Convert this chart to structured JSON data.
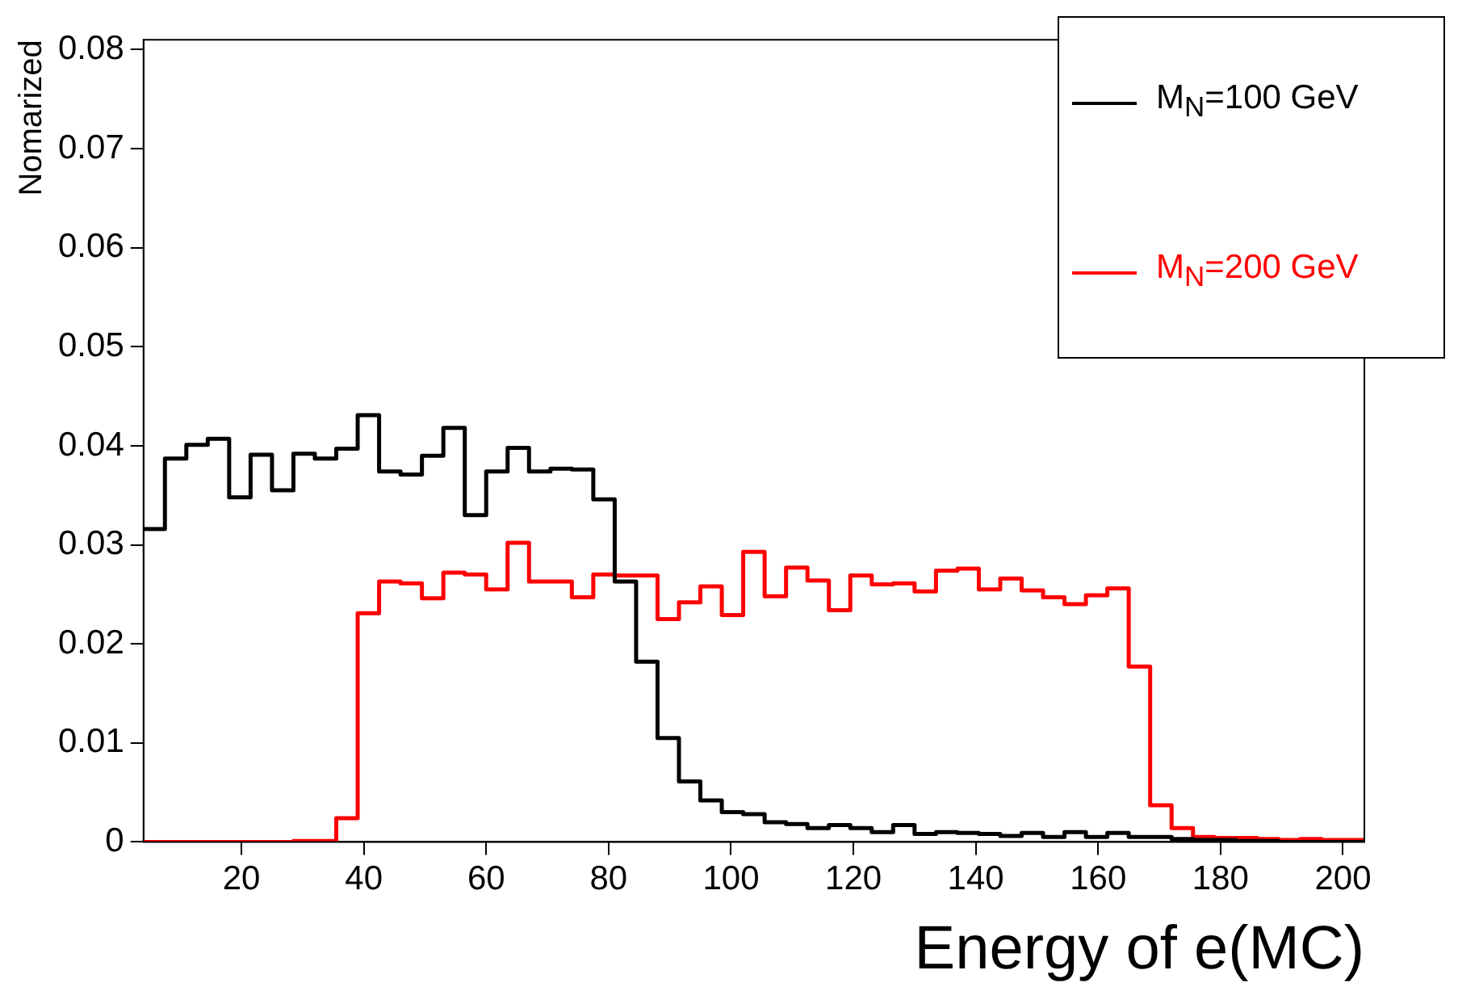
{
  "chart_data": {
    "type": "histogram",
    "xlabel": "Energy of e(MC)",
    "ylabel": "Nomarized",
    "bins": [
      4,
      7.5,
      11,
      14.5,
      18,
      21.5,
      25,
      28.5,
      32,
      35.5,
      39,
      42.5,
      46,
      49.5,
      53,
      56.5,
      60,
      63.5,
      67,
      70.5,
      74,
      77.5,
      81,
      84.5,
      88,
      91.5,
      95,
      98.5,
      102,
      105.5,
      109,
      112.5,
      116,
      119.5,
      123,
      126.5,
      130,
      133.5,
      137,
      140.5,
      144,
      147.5,
      151,
      154.5,
      158,
      161.5,
      165,
      168.5,
      172,
      175.5,
      179,
      182.5,
      186,
      189.5,
      193,
      196.5,
      200,
      203.5
    ],
    "series": [
      {
        "name": "M$_{N}$=100 GeV",
        "color": "#000000",
        "values": [
          0.0316,
          0.0387,
          0.0401,
          0.0407,
          0.0348,
          0.0391,
          0.0355,
          0.0392,
          0.0387,
          0.0397,
          0.0431,
          0.0374,
          0.0371,
          0.039,
          0.0418,
          0.033,
          0.0374,
          0.0398,
          0.0374,
          0.0377,
          0.0376,
          0.0346,
          0.0263,
          0.0182,
          0.0105,
          0.0061,
          0.0042,
          0.003,
          0.0028,
          0.002,
          0.0018,
          0.0014,
          0.0017,
          0.0014,
          0.001,
          0.0017,
          0.0008,
          0.001,
          0.0009,
          0.0008,
          0.0006,
          0.0009,
          0.0005,
          0.001,
          0.0005,
          0.0009,
          0.0005,
          0.0005,
          0.0003,
          0.0002,
          0.0002,
          0.0001,
          0.0001,
          0,
          0,
          0,
          0
        ]
      },
      {
        "name": "M$_{N}$=200 GeV",
        "color": "#ff0000",
        "values": [
          0,
          0,
          0,
          0,
          0,
          0,
          0,
          0.0001,
          0.0001,
          0.0024,
          0.0231,
          0.0263,
          0.0261,
          0.0246,
          0.0272,
          0.027,
          0.0255,
          0.0302,
          0.0263,
          0.0263,
          0.0247,
          0.027,
          0.0269,
          0.0269,
          0.0225,
          0.0242,
          0.0258,
          0.0229,
          0.0293,
          0.0248,
          0.0277,
          0.0264,
          0.0234,
          0.0269,
          0.026,
          0.0261,
          0.0253,
          0.0274,
          0.0276,
          0.0255,
          0.0266,
          0.0254,
          0.0247,
          0.024,
          0.0249,
          0.0256,
          0.0177,
          0.0037,
          0.0014,
          0.0005,
          0.0004,
          0.0004,
          0.0003,
          0.0002,
          0.0003,
          0.0002,
          0.0002
        ]
      }
    ],
    "xlim": [
      4,
      203.5
    ],
    "xticks": [
      20,
      40,
      60,
      80,
      100,
      120,
      140,
      160,
      180,
      200
    ],
    "ylim": [
      0,
      0.081
    ],
    "yticks": [
      0,
      0.01,
      0.02,
      0.03,
      0.04,
      0.05,
      0.06,
      0.07,
      0.08
    ],
    "grid": false,
    "legend": "top right"
  }
}
